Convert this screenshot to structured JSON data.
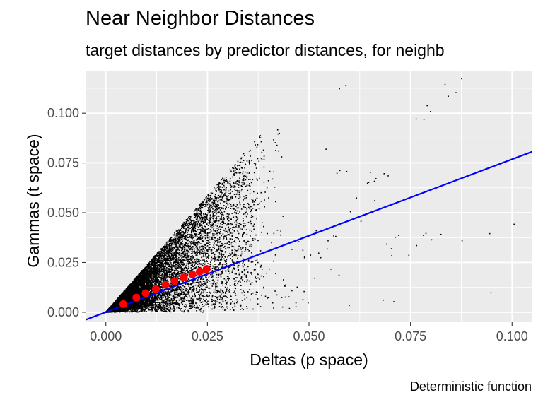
{
  "chart_data": {
    "type": "scatter",
    "title": "Near Neighbor Distances",
    "subtitle": "target distances by predictor distances, for neighb",
    "caption": "Deterministic function",
    "xlabel": "Deltas (p space)",
    "ylabel": "Gammas (t space)",
    "xlim": [
      -0.005,
      0.105
    ],
    "ylim": [
      -0.005,
      0.121
    ],
    "x_ticks": [
      0.0,
      0.025,
      0.05,
      0.075,
      0.1
    ],
    "x_tick_labels": [
      "0.000",
      "0.025",
      "0.050",
      "0.075",
      "0.100"
    ],
    "y_ticks": [
      0.0,
      0.025,
      0.05,
      0.075,
      0.1
    ],
    "y_tick_labels": [
      "0.000",
      "0.025",
      "0.050",
      "0.075",
      "0.100"
    ],
    "grid": true,
    "legend": "none",
    "background_color": "#EBEBEB",
    "grid_color": "#FFFFFF",
    "point_color": "#000000",
    "fit_line": {
      "color": "#0000FF",
      "x": [
        -0.005,
        0.105
      ],
      "y": [
        -0.0038,
        0.0807
      ]
    },
    "binned_means": {
      "color": "#FF0000",
      "x": [
        0.0043,
        0.0075,
        0.0098,
        0.0123,
        0.0147,
        0.0169,
        0.0192,
        0.0213,
        0.0231,
        0.0248
      ],
      "y": [
        0.0041,
        0.0074,
        0.0095,
        0.0117,
        0.0138,
        0.0156,
        0.0175,
        0.019,
        0.0204,
        0.0217
      ]
    },
    "scatter_sparse_points": {
      "x": [
        0.0575,
        0.0591,
        0.0542,
        0.0576,
        0.0593,
        0.0569,
        0.0617,
        0.0647,
        0.0651,
        0.0665,
        0.0685,
        0.0695,
        0.0661,
        0.0644,
        0.0764,
        0.0783,
        0.0791,
        0.0799,
        0.0843,
        0.0862,
        0.0876,
        0.0835,
        0.0518,
        0.0524,
        0.0504,
        0.0475,
        0.0458,
        0.0485,
        0.0529,
        0.0545,
        0.0561,
        0.0566,
        0.0547,
        0.0602,
        0.0628,
        0.0662,
        0.0691,
        0.0703,
        0.0704,
        0.0721,
        0.0713,
        0.0746,
        0.0765,
        0.0782,
        0.0788,
        0.0802,
        0.0825,
        0.0877,
        0.0945,
        0.1005,
        0.0948,
        0.0683,
        0.0709,
        0.0599,
        0.0498,
        0.0485,
        0.0458,
        0.0471,
        0.0514,
        0.0554,
        0.0574,
        0.0489,
        0.0489,
        0.0437,
        0.0441,
        0.0421,
        0.0451,
        0.0468,
        0.0452,
        0.0413,
        0.0435,
        0.0442,
        0.0443,
        0.0488,
        0.0468
      ],
      "y": [
        0.1123,
        0.1138,
        0.0819,
        0.0712,
        0.0707,
        0.0698,
        0.0574,
        0.0652,
        0.0702,
        0.0671,
        0.0696,
        0.0685,
        0.0658,
        0.0648,
        0.0971,
        0.0969,
        0.1038,
        0.1008,
        0.1085,
        0.1103,
        0.1173,
        0.1144,
        0.0409,
        0.0297,
        0.0287,
        0.0354,
        0.0316,
        0.0311,
        0.0274,
        0.0318,
        0.0383,
        0.0381,
        0.0359,
        0.0505,
        0.0457,
        0.0561,
        0.0342,
        0.0319,
        0.0285,
        0.0386,
        0.0377,
        0.0286,
        0.0335,
        0.0386,
        0.0396,
        0.0364,
        0.0391,
        0.0359,
        0.0395,
        0.0442,
        0.0098,
        0.0061,
        0.0053,
        0.0034,
        0.0047,
        0.0064,
        0.0108,
        0.0126,
        0.0171,
        0.0217,
        0.0186,
        0.0274,
        0.0277,
        0.0163,
        0.0131,
        0.0087,
        0.0077,
        0.0028,
        0.0019,
        0.0021,
        0.0026,
        0.0076,
        0.0138,
        0.0104,
        0.0047
      ]
    }
  },
  "colors": {
    "blue": "#0000FF",
    "red": "#FF0000",
    "panel": "#EBEBEB"
  }
}
